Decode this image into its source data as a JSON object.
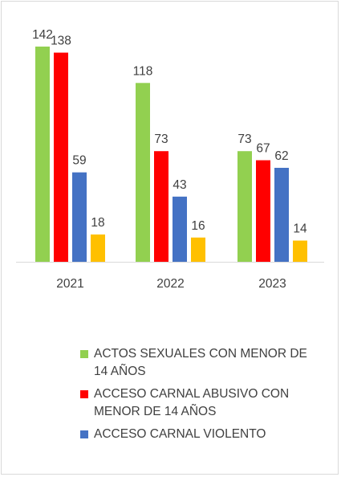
{
  "chart_data": {
    "type": "bar",
    "categories": [
      "2021",
      "2022",
      "2023"
    ],
    "series": [
      {
        "name": "ACTOS SEXUALES CON MENOR DE 14 AÑOS",
        "color": "#92d050",
        "values": [
          142,
          118,
          73
        ]
      },
      {
        "name": "ACCESO CARNAL ABUSIVO CON MENOR DE 14 AÑOS",
        "color": "#ff0000",
        "values": [
          138,
          73,
          67
        ]
      },
      {
        "name": "ACCESO CARNAL VIOLENTO",
        "color": "#4472c4",
        "values": [
          59,
          43,
          62
        ]
      },
      {
        "name": "",
        "color": "#ffc000",
        "values": [
          18,
          16,
          14
        ]
      }
    ],
    "ylim": [
      0,
      142
    ],
    "data_labels": true,
    "grid": false,
    "legend_position": "bottom"
  }
}
